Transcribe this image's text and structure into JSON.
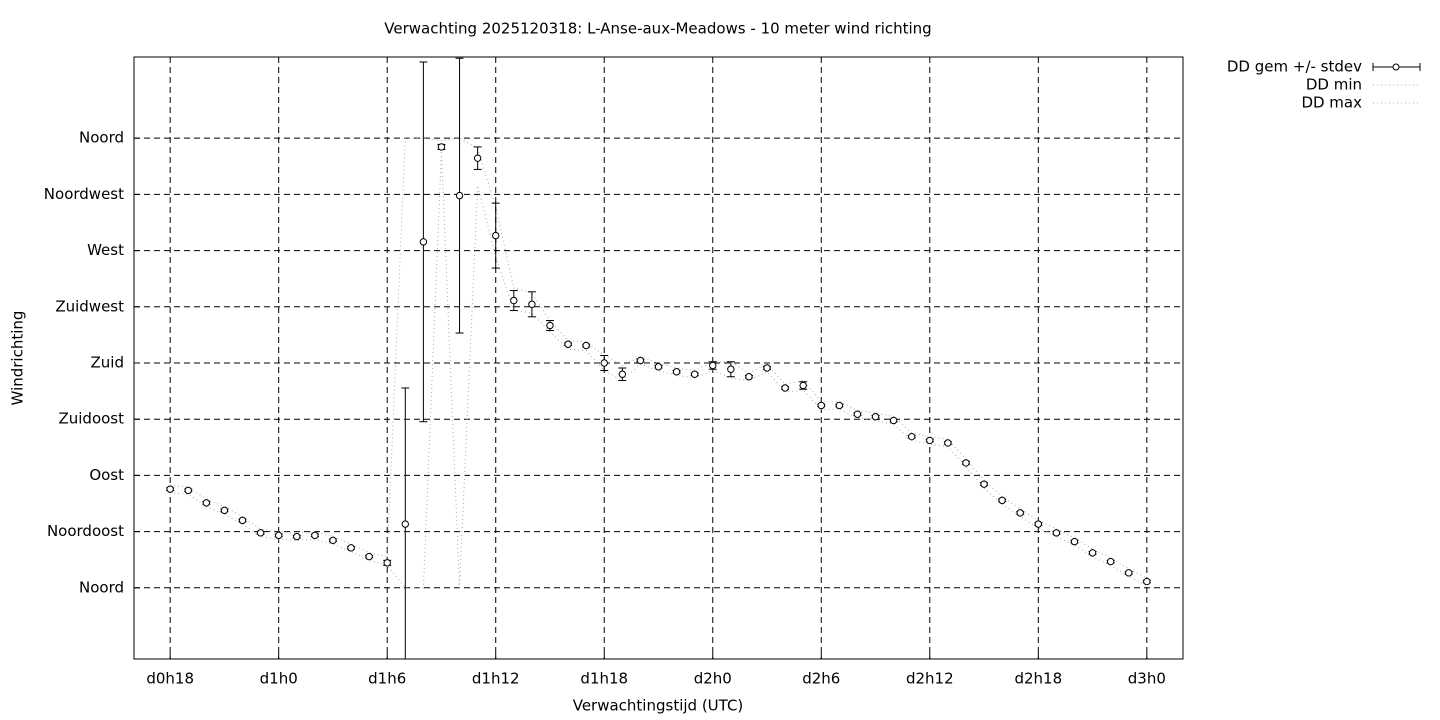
{
  "chart_data": {
    "type": "errorline",
    "title": "Verwachting 2025120318: L-Anse-aux-Meadows - 10 meter wind richting",
    "x_label": "Verwachtingstijd (UTC)",
    "y_label": "Windrichting",
    "x": [
      18,
      19,
      20,
      21,
      22,
      23,
      24,
      25,
      26,
      27,
      28,
      29,
      30,
      31,
      32,
      33,
      34,
      35,
      36,
      37,
      38,
      39,
      40,
      41,
      42,
      43,
      44,
      45,
      46,
      47,
      48,
      49,
      50,
      51,
      52,
      53,
      54,
      55,
      56,
      57,
      58,
      59,
      60,
      61,
      62,
      63,
      64,
      65,
      66,
      67,
      68,
      69,
      70,
      71,
      72
    ],
    "xlim": [
      16,
      74
    ],
    "xticks": [
      {
        "value": 18,
        "label": "d0h18"
      },
      {
        "value": 24,
        "label": "d1h0"
      },
      {
        "value": 30,
        "label": "d1h6"
      },
      {
        "value": 36,
        "label": "d1h12"
      },
      {
        "value": 42,
        "label": "d1h18"
      },
      {
        "value": 48,
        "label": "d2h0"
      },
      {
        "value": 54,
        "label": "d2h6"
      },
      {
        "value": 60,
        "label": "d2h12"
      },
      {
        "value": 66,
        "label": "d2h18"
      },
      {
        "value": 72,
        "label": "d3h0"
      }
    ],
    "ylim": [
      -57,
      425
    ],
    "yticks": [
      {
        "value": 0,
        "label": "Noord"
      },
      {
        "value": 45,
        "label": "Noordoost"
      },
      {
        "value": 90,
        "label": "Oost"
      },
      {
        "value": 135,
        "label": "Zuidoost"
      },
      {
        "value": 180,
        "label": "Zuid"
      },
      {
        "value": 225,
        "label": "Zuidwest"
      },
      {
        "value": 270,
        "label": "West"
      },
      {
        "value": 315,
        "label": "Noordwest"
      },
      {
        "value": 360,
        "label": "Noord"
      }
    ],
    "grid": true,
    "legend": "outside-right",
    "series": [
      {
        "name": "DD gem +/- stdev",
        "color": "#000000",
        "values": [
          79,
          78,
          68,
          62,
          54,
          44,
          42,
          41,
          42,
          38,
          32,
          25,
          20,
          51,
          277,
          353,
          314,
          344,
          282,
          230,
          227,
          210,
          195,
          194,
          180,
          171,
          182,
          177,
          173,
          171,
          178,
          175,
          169,
          176,
          160,
          162,
          146,
          146,
          139,
          137,
          134,
          121,
          118,
          116,
          100,
          83,
          70,
          60,
          51,
          44,
          37,
          28,
          21,
          12,
          5
        ],
        "errors": [
          1,
          1,
          1,
          1,
          1,
          1,
          1,
          1,
          1,
          1,
          1,
          1,
          2,
          109,
          144,
          2,
          110,
          9,
          26,
          8,
          10,
          4,
          1,
          1,
          6,
          5,
          1,
          1,
          1,
          1,
          3,
          6,
          1,
          1,
          1,
          3,
          1,
          1,
          1,
          1,
          1,
          1,
          1,
          1,
          1,
          1,
          1,
          1,
          1,
          1,
          1,
          1,
          1,
          1,
          1
        ]
      },
      {
        "name": "DD min",
        "color": "#aaaaaa",
        "values": [
          76,
          75,
          65,
          59,
          51,
          41,
          39,
          38,
          39,
          35,
          29,
          22,
          18,
          0,
          0,
          350,
          0,
          322,
          265,
          222,
          220,
          205,
          191,
          190,
          174,
          166,
          179,
          174,
          170,
          168,
          174,
          168,
          166,
          173,
          157,
          158,
          143,
          143,
          136,
          134,
          131,
          118,
          115,
          113,
          97,
          80,
          67,
          57,
          48,
          41,
          34,
          25,
          18,
          9,
          2
        ]
      },
      {
        "name": "DD max",
        "color": "#aaaaaa",
        "values": [
          82,
          81,
          71,
          65,
          57,
          47,
          45,
          44,
          45,
          41,
          35,
          28,
          25,
          360,
          360,
          358,
          360,
          352,
          305,
          240,
          236,
          214,
          198,
          197,
          186,
          178,
          185,
          180,
          176,
          174,
          181,
          181,
          172,
          179,
          163,
          166,
          149,
          149,
          142,
          140,
          137,
          124,
          121,
          119,
          103,
          86,
          73,
          63,
          54,
          47,
          40,
          31,
          24,
          15,
          8
        ]
      }
    ]
  }
}
